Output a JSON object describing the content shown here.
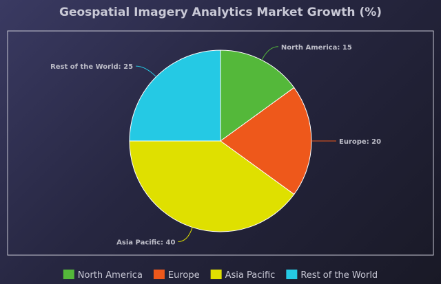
{
  "chart_data": {
    "type": "pie",
    "title": "Geospatial Imagery Analytics Market Growth (%)",
    "categories": [
      "North America",
      "Europe",
      "Asia Pacific",
      "Rest of the World"
    ],
    "values": [
      15,
      20,
      40,
      25
    ],
    "colors": [
      "#54b83a",
      "#ee581b",
      "#dfe000",
      "#25c9e4"
    ],
    "slice_labels": [
      "North America: 15",
      "Europe: 20",
      "Asia Pacific: 40",
      "Rest of the World: 25"
    ],
    "legend": {
      "position": "bottom",
      "items": [
        "North America",
        "Europe",
        "Asia Pacific",
        "Rest of the World"
      ]
    }
  }
}
